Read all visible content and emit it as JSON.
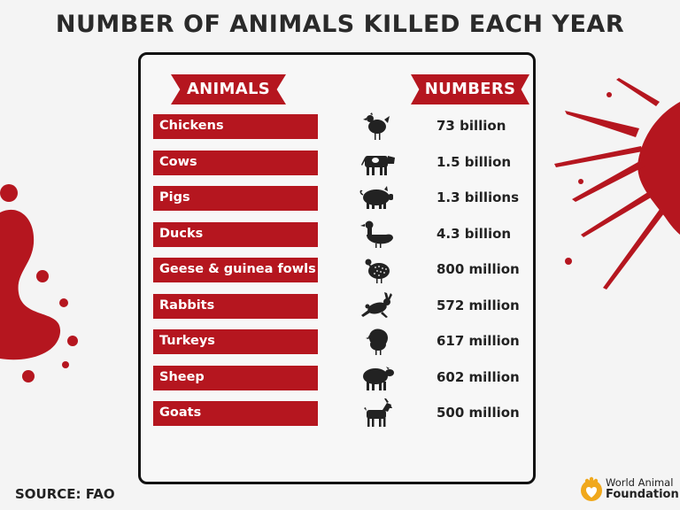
{
  "title": "NUMBER OF ANIMALS KILLED EACH YEAR",
  "headers": {
    "animals": "ANIMALS",
    "numbers": "NUMBERS"
  },
  "rows": [
    {
      "animal": "Chickens",
      "number": "73 billion",
      "icon": "chicken-icon"
    },
    {
      "animal": "Cows",
      "number": "1.5 billion",
      "icon": "cow-icon"
    },
    {
      "animal": "Pigs",
      "number": "1.3 billions",
      "icon": "pig-icon"
    },
    {
      "animal": "Ducks",
      "number": "4.3 billion",
      "icon": "duck-icon"
    },
    {
      "animal": "Geese & guinea fowls",
      "number": "800 million",
      "icon": "guinea-fowl-icon"
    },
    {
      "animal": "Rabbits",
      "number": "572 million",
      "icon": "rabbit-icon"
    },
    {
      "animal": "Turkeys",
      "number": "617 million",
      "icon": "turkey-icon"
    },
    {
      "animal": "Sheep",
      "number": "602 million",
      "icon": "sheep-icon"
    },
    {
      "animal": "Goats",
      "number": "500 million",
      "icon": "goat-icon"
    }
  ],
  "source": "SOURCE: FAO",
  "logo": {
    "line1": "World Animal",
    "line2": "Foundation"
  },
  "colors": {
    "accent": "#b5161f",
    "text": "#222222",
    "background": "#f4f4f4"
  }
}
